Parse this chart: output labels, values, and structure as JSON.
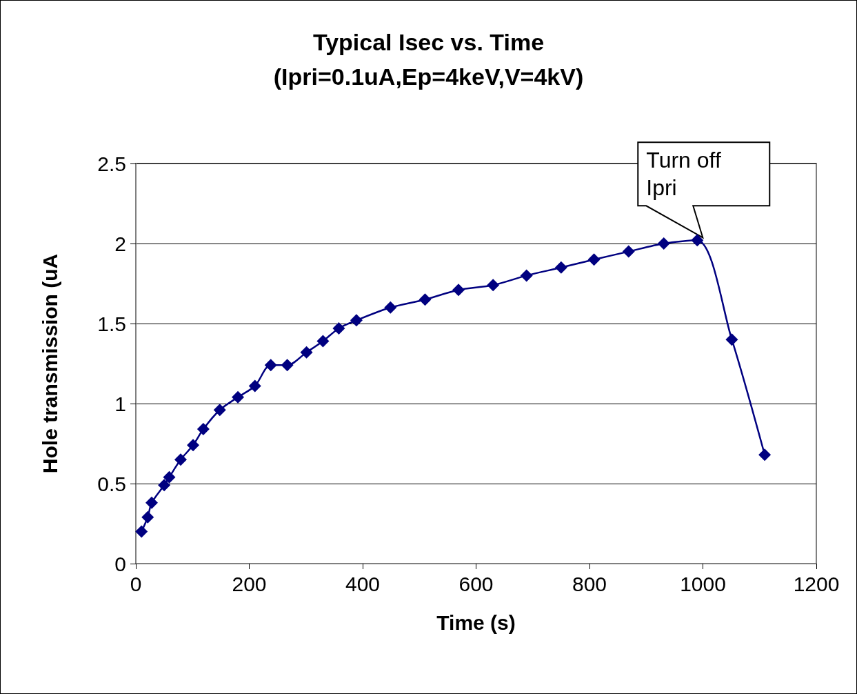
{
  "chart_data": {
    "type": "line",
    "title": "Typical Isec vs. Time",
    "subtitle": "(Ipri=0.1uA,Ep=4keV,V=4kV)",
    "xlabel": "Time (s)",
    "ylabel": "Hole transmission (uA",
    "x": [
      10,
      21,
      28,
      50,
      59,
      79,
      101,
      119,
      148,
      180,
      210,
      238,
      267,
      301,
      330,
      358,
      389,
      449,
      510,
      569,
      630,
      689,
      750,
      808,
      869,
      931,
      990,
      1051,
      1109
    ],
    "series": [
      {
        "color": "#000080",
        "values": [
          0.2,
          0.29,
          0.38,
          0.49,
          0.54,
          0.65,
          0.74,
          0.84,
          0.96,
          1.04,
          1.11,
          1.24,
          1.24,
          1.32,
          1.39,
          1.47,
          1.52,
          1.6,
          1.65,
          1.71,
          1.74,
          1.8,
          1.85,
          1.9,
          1.95,
          2.0,
          2.02,
          1.4,
          0.68
        ]
      }
    ],
    "xlim": [
      0,
      1200
    ],
    "xticks": [
      0,
      200,
      400,
      600,
      800,
      1000,
      1200
    ],
    "ylim": [
      0,
      2.5
    ],
    "yticks": [
      0,
      0.5,
      1,
      1.5,
      2,
      2.5
    ],
    "grid": "y",
    "marker": "diamond",
    "line_style": "solid",
    "annotations": [
      {
        "text": "Turn off Ipri",
        "x": 990,
        "y": 2.02
      }
    ]
  }
}
